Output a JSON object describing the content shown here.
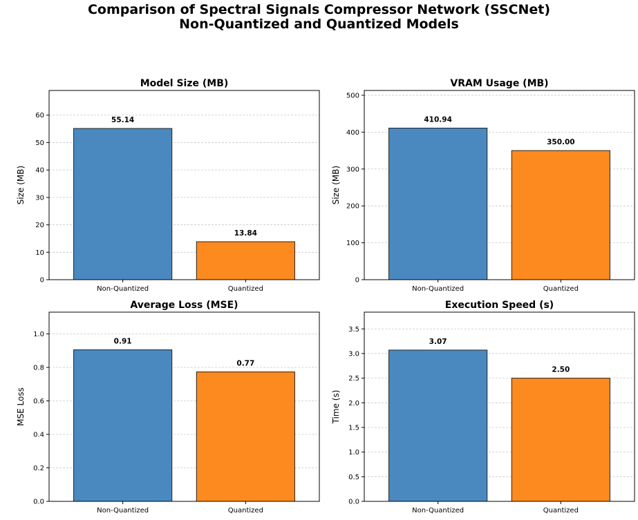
{
  "suptitle": {
    "line1": "Comparison of Spectral Signals Compressor Network (SSCNet)",
    "line2": "Non-Quantized and Quantized Models"
  },
  "colors": {
    "non_quantized": "#4a89c0",
    "quantized": "#fd8a1e",
    "edge": "#222222",
    "grid": "#c8c8c8"
  },
  "chart_data": [
    {
      "type": "bar",
      "title": "Model Size (MB)",
      "xlabel": "",
      "ylabel": "Size (MB)",
      "categories": [
        "Non-Quantized",
        "Quantized"
      ],
      "values": [
        55.14,
        13.84
      ],
      "value_labels": [
        "55.14",
        "13.84"
      ],
      "ylim": [
        0,
        69
      ],
      "yticks": [
        0,
        10,
        20,
        30,
        40,
        50,
        60
      ],
      "grid": "y-dashed"
    },
    {
      "type": "bar",
      "title": "VRAM Usage (MB)",
      "xlabel": "",
      "ylabel": "Size (MB)",
      "categories": [
        "Non-Quantized",
        "Quantized"
      ],
      "values": [
        410.94,
        350.0
      ],
      "value_labels": [
        "410.94",
        "350.00"
      ],
      "ylim": [
        0,
        513
      ],
      "yticks": [
        0,
        100,
        200,
        300,
        400,
        500
      ],
      "grid": "y-dashed"
    },
    {
      "type": "bar",
      "title": "Average Loss (MSE)",
      "xlabel": "",
      "ylabel": "MSE Loss",
      "categories": [
        "Non-Quantized",
        "Quantized"
      ],
      "values": [
        0.905,
        0.773
      ],
      "value_labels": [
        "0.91",
        "0.77"
      ],
      "ylim": [
        0,
        1.13
      ],
      "yticks": [
        0.0,
        0.2,
        0.4,
        0.6,
        0.8,
        1.0
      ],
      "ytick_labels": [
        "0.0",
        "0.2",
        "0.4",
        "0.6",
        "0.8",
        "1.0"
      ],
      "grid": "y-dashed"
    },
    {
      "type": "bar",
      "title": "Execution Speed (s)",
      "xlabel": "",
      "ylabel": "Time (s)",
      "categories": [
        "Non-Quantized",
        "Quantized"
      ],
      "values": [
        3.07,
        2.5
      ],
      "value_labels": [
        "3.07",
        "2.50"
      ],
      "ylim": [
        0,
        3.84
      ],
      "yticks": [
        0.0,
        0.5,
        1.0,
        1.5,
        2.0,
        2.5,
        3.0,
        3.5
      ],
      "ytick_labels": [
        "0.0",
        "0.5",
        "1.0",
        "1.5",
        "2.0",
        "2.5",
        "3.0",
        "3.5"
      ],
      "grid": "y-dashed"
    }
  ]
}
